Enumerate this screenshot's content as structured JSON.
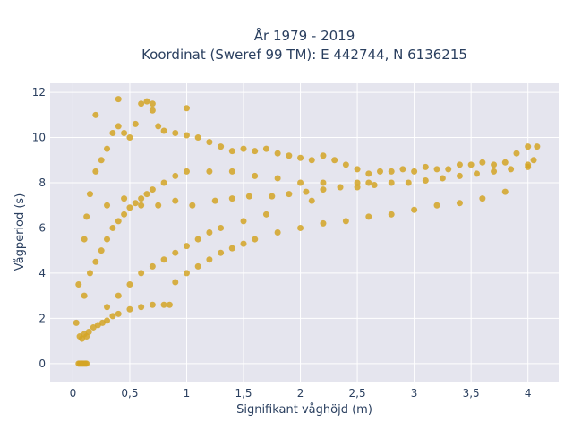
{
  "chart_data": {
    "type": "scatter",
    "title_line1": "År 1979 - 2019",
    "title_line2": "Koordinat (Sweref 99 TM): E 442744, N 6136215",
    "xlabel": "Signifikant våghöjd (m)",
    "ylabel": "Vågperiod (s)",
    "xlim": [
      -0.2,
      4.27
    ],
    "ylim": [
      -0.8,
      12.4
    ],
    "x_ticks": [
      0,
      0.5,
      1,
      1.5,
      2,
      2.5,
      3,
      3.5,
      4
    ],
    "x_tick_labels": [
      "0",
      "0,5",
      "1",
      "1,5",
      "2",
      "2,5",
      "3",
      "3,5",
      "4"
    ],
    "y_ticks": [
      0,
      2,
      4,
      6,
      8,
      10,
      12
    ],
    "y_tick_labels": [
      "0",
      "2",
      "4",
      "6",
      "8",
      "10",
      "12"
    ],
    "grid": true,
    "legend": "none",
    "series": [
      {
        "color": "#d4a524",
        "x": [
          0.05,
          0.06,
          0.07,
          0.08,
          0.09,
          0.1,
          0.11,
          0.12,
          0.06,
          0.08,
          0.1,
          0.12,
          0.14,
          0.18,
          0.22,
          0.26,
          0.3,
          0.35,
          0.4,
          0.5,
          0.6,
          0.7,
          0.8,
          0.85,
          0.9,
          1.0,
          1.1,
          1.2,
          1.3,
          1.4,
          1.5,
          1.6,
          1.8,
          2.0,
          2.2,
          2.4,
          2.6,
          2.8,
          3.0,
          3.2,
          3.4,
          3.6,
          3.8,
          4.0,
          4.08,
          0.03,
          0.05,
          0.1,
          0.12,
          0.15,
          0.2,
          0.25,
          0.3,
          0.35,
          0.4,
          0.45,
          0.5,
          0.55,
          0.6,
          0.65,
          0.7,
          0.75,
          0.8,
          0.9,
          1.0,
          1.1,
          1.2,
          1.3,
          1.4,
          1.5,
          1.6,
          1.7,
          1.8,
          1.9,
          2.0,
          2.1,
          2.2,
          2.3,
          2.4,
          2.5,
          2.6,
          2.7,
          2.8,
          2.9,
          3.0,
          3.1,
          3.2,
          3.3,
          3.4,
          3.5,
          3.6,
          3.7,
          3.8,
          3.9,
          4.0,
          0.1,
          0.15,
          0.2,
          0.25,
          0.3,
          0.35,
          0.4,
          0.45,
          0.5,
          0.55,
          0.6,
          0.65,
          0.7,
          0.8,
          0.9,
          1.0,
          1.2,
          1.4,
          1.6,
          1.8,
          2.0,
          2.2,
          2.5,
          2.6,
          0.3,
          0.4,
          0.5,
          0.6,
          0.7,
          0.8,
          0.9,
          1.0,
          1.1,
          1.2,
          1.3,
          1.5,
          1.7,
          2.1,
          0.3,
          0.45,
          0.6,
          0.75,
          0.9,
          1.05,
          1.25,
          1.4,
          1.55,
          1.75,
          1.9,
          2.05,
          2.2,
          2.35,
          2.5,
          2.65,
          2.8,
          2.95,
          3.1,
          3.25,
          3.4,
          3.55,
          3.7,
          3.85,
          4.0,
          4.05,
          0.2,
          0.4,
          0.7,
          1.0
        ],
        "y": [
          0,
          0,
          0,
          0,
          0,
          0,
          0,
          0,
          1.2,
          1.1,
          1.3,
          1.2,
          1.4,
          1.6,
          1.7,
          1.8,
          1.9,
          2.1,
          2.2,
          2.4,
          2.5,
          2.6,
          2.6,
          2.6,
          3.6,
          4.0,
          4.3,
          4.6,
          4.9,
          5.1,
          5.3,
          5.5,
          5.8,
          6.0,
          6.2,
          6.3,
          6.5,
          6.6,
          6.8,
          7.0,
          7.1,
          7.3,
          7.6,
          8.7,
          9.6,
          1.8,
          3.5,
          5.5,
          6.5,
          7.5,
          8.5,
          9.0,
          9.5,
          10.2,
          10.5,
          10.2,
          10.0,
          10.6,
          11.5,
          11.6,
          11.2,
          10.5,
          10.3,
          10.2,
          10.1,
          10.0,
          9.8,
          9.6,
          9.4,
          9.5,
          9.4,
          9.5,
          9.3,
          9.2,
          9.1,
          9.0,
          9.2,
          9.0,
          8.8,
          8.6,
          8.4,
          8.5,
          8.5,
          8.6,
          8.5,
          8.7,
          8.6,
          8.6,
          8.8,
          8.8,
          8.9,
          8.8,
          8.9,
          9.3,
          9.6,
          3.0,
          4.0,
          4.5,
          5.0,
          5.5,
          6.0,
          6.3,
          6.6,
          6.9,
          7.1,
          7.3,
          7.5,
          7.7,
          8.0,
          8.3,
          8.5,
          8.5,
          8.5,
          8.3,
          8.2,
          8.0,
          8.0,
          8.0,
          8.0,
          2.5,
          3.0,
          3.5,
          4.0,
          4.3,
          4.6,
          4.9,
          5.2,
          5.5,
          5.8,
          6.0,
          6.3,
          6.6,
          7.2,
          7.0,
          7.3,
          7.0,
          7.0,
          7.2,
          7.0,
          7.2,
          7.3,
          7.4,
          7.4,
          7.5,
          7.6,
          7.7,
          7.8,
          7.8,
          7.9,
          8.0,
          8.0,
          8.1,
          8.2,
          8.3,
          8.4,
          8.5,
          8.6,
          8.8,
          9.0,
          11.0,
          11.7,
          11.5,
          11.3
        ]
      }
    ]
  }
}
